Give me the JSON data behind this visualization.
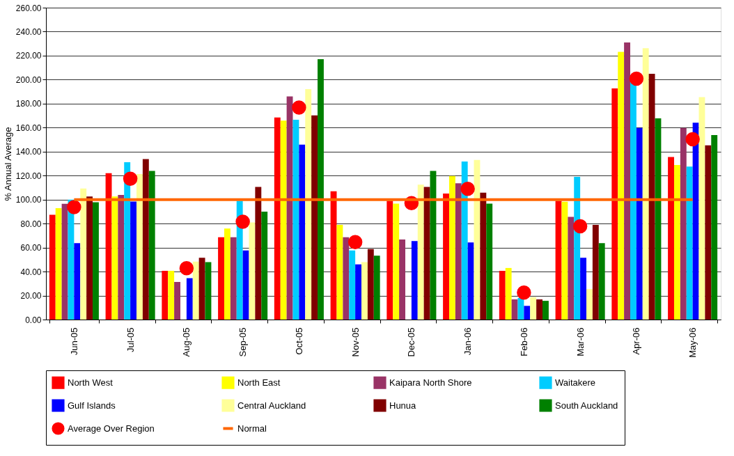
{
  "chart_data": {
    "type": "bar",
    "ylabel": "% Annual Average",
    "categories": [
      "Jun-05",
      "Jul-05",
      "Aug-05",
      "Sep-05",
      "Oct-05",
      "Nov-05",
      "Dec-05",
      "Jan-06",
      "Feb-06",
      "Mar-06",
      "Apr-06",
      "May-06"
    ],
    "series": [
      {
        "name": "North West",
        "color": "#ff0000",
        "values": [
          87.4,
          122,
          40.6,
          68.6,
          168.4,
          106.9,
          99,
          105,
          40.6,
          99,
          192.7,
          135.5
        ]
      },
      {
        "name": "North East",
        "color": "#ffff00",
        "values": [
          92.9,
          102.6,
          40.6,
          75.9,
          165.9,
          78.9,
          96.6,
          119.7,
          43,
          98.2,
          223.1,
          128.8
        ]
      },
      {
        "name": "Kaipara North Shore",
        "color": "#993366",
        "values": [
          96.5,
          103.9,
          31.4,
          68.6,
          186,
          68.6,
          66.7,
          113.6,
          16.8,
          85.6,
          231,
          159.8
        ]
      },
      {
        "name": "Waitakere",
        "color": "#00ccff",
        "values": [
          100,
          131.2,
          null,
          99,
          166.5,
          57.6,
          null,
          131.8,
          18,
          119,
          197.8,
          127.6
        ]
      },
      {
        "name": "Gulf Islands",
        "color": "#0000ff",
        "values": [
          63.7,
          98.4,
          34.5,
          57.6,
          145.8,
          46,
          65.5,
          64.3,
          11.4,
          51.5,
          159.8,
          164.1
        ]
      },
      {
        "name": "Central Auckland",
        "color": "#ffff99",
        "values": [
          109.3,
          121.3,
          48.3,
          81,
          192.1,
          47.9,
          112.4,
          133,
          18.7,
          25.4,
          226.2,
          185.4
        ]
      },
      {
        "name": "Hunua",
        "color": "#800000",
        "values": [
          102.6,
          133.7,
          51.5,
          110.5,
          170.2,
          58.8,
          110.5,
          105.7,
          16.8,
          78.9,
          204.9,
          145.2
        ]
      },
      {
        "name": "South Auckland",
        "color": "#008000",
        "values": [
          97.8,
          123.9,
          47.9,
          89.9,
          217,
          53.3,
          123.9,
          96.6,
          15.6,
          63.7,
          167.7,
          153.8
        ]
      },
      {
        "name": "Average Over Region",
        "color": "#ff0000",
        "type": "scatter",
        "marker": "circle",
        "values": [
          93.7,
          117.4,
          42.8,
          81.5,
          176.7,
          64.5,
          97,
          108.9,
          22.5,
          77.7,
          200.8,
          150.3
        ]
      },
      {
        "name": "Normal",
        "color": "#ff6600",
        "type": "line",
        "values": [
          100,
          100,
          100,
          100,
          100,
          100,
          100,
          100,
          100,
          100,
          100,
          100
        ]
      }
    ],
    "ylim": [
      0,
      260
    ],
    "yticks": [
      {
        "value": 0,
        "label": "0.00"
      },
      {
        "value": 20,
        "label": "20.00"
      },
      {
        "value": 40,
        "label": "40.00"
      },
      {
        "value": 60,
        "label": "60.00"
      },
      {
        "value": 80,
        "label": "80.00"
      },
      {
        "value": 100,
        "label": "100.00"
      },
      {
        "value": 120,
        "label": "120.00"
      },
      {
        "value": 140,
        "label": "140.00"
      },
      {
        "value": 160,
        "label": "160.00"
      },
      {
        "value": 180,
        "label": "180.00"
      },
      {
        "value": 200,
        "label": "200.00"
      },
      {
        "value": 220,
        "label": "220.00"
      },
      {
        "value": 240,
        "label": "240.00"
      },
      {
        "value": 260,
        "label": "260.00"
      }
    ],
    "grid": "y",
    "legend": "bottom"
  }
}
